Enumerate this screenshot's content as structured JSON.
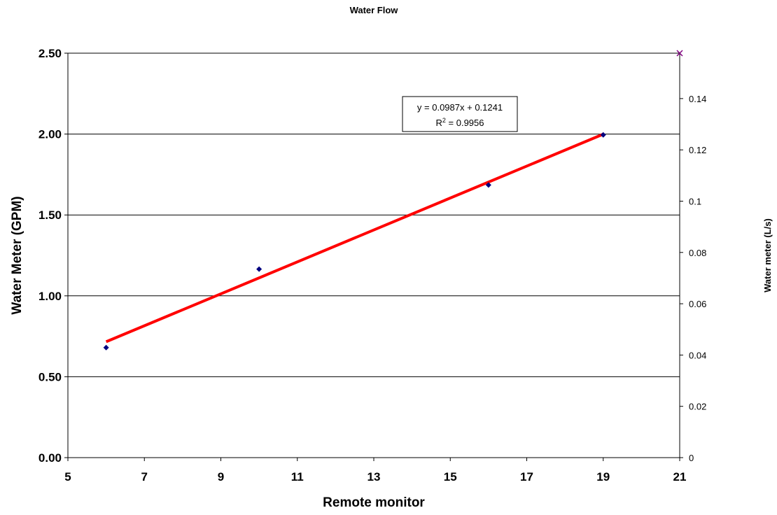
{
  "chart_data": {
    "type": "scatter",
    "title": "Water Flow",
    "xlabel": "Remote monitor",
    "ylabel": "Water Meter (GPM)",
    "y2label": "Water meter (L/s)",
    "xlim": [
      5,
      21
    ],
    "ylim": [
      0,
      2.5
    ],
    "y2lim": [
      0,
      0.1577
    ],
    "x_ticks": [
      "5",
      "7",
      "9",
      "11",
      "13",
      "15",
      "17",
      "19",
      "21"
    ],
    "y_ticks": [
      "0.00",
      "0.50",
      "1.00",
      "1.50",
      "2.00",
      "2.50"
    ],
    "y2_ticks": [
      "0",
      "0.02",
      "0.04",
      "0.06",
      "0.08",
      "0.1",
      "0.12",
      "0.14"
    ],
    "grid": "horizontal",
    "series": [
      {
        "x": [
          6,
          10,
          16,
          19
        ],
        "y": [
          0.68,
          1.165,
          1.685,
          1.995
        ],
        "color": "#000080",
        "marker": "diamond"
      },
      {
        "axis": "secondary",
        "x": [
          21
        ],
        "y": [
          0.1577
        ],
        "color": "#800080",
        "marker": "x"
      }
    ],
    "trendline": {
      "slope": 0.0987,
      "intercept": 0.1241,
      "x_range": [
        6,
        19
      ],
      "color": "#ff0000",
      "equation": "y = 0.0987x + 0.1241",
      "r2_prefix": "R",
      "r2_superscript": "2",
      "r2_value": " = 0.9956"
    }
  }
}
